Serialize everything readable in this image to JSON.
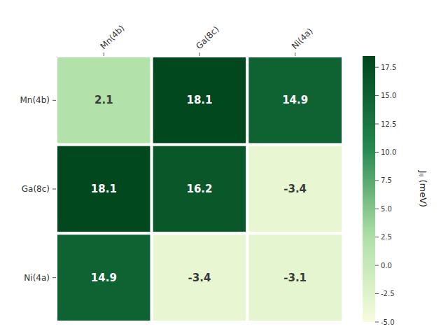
{
  "chart_data": {
    "type": "heatmap",
    "x_categories": [
      "Mn(4b)",
      "Ga(8c)",
      "Ni(4a)"
    ],
    "y_categories": [
      "Mn(4b)",
      "Ga(8c)",
      "Ni(4a)"
    ],
    "values": [
      [
        2.1,
        18.1,
        14.9
      ],
      [
        18.1,
        16.2,
        -3.4
      ],
      [
        14.9,
        -3.4,
        -3.1
      ]
    ],
    "data_labels": true,
    "colorbar_label": "Jᵢⱼ (meV)",
    "colorbar_range": [
      -5.0,
      18.5
    ],
    "colorbar_ticks": [
      {
        "value": -5.0,
        "label": "-5.0"
      },
      -2.5,
      {
        "value": 0.0,
        "label": "0.0"
      },
      2.5,
      {
        "value": 5.0,
        "label": "5.0"
      },
      7.5,
      {
        "value": 10.0,
        "label": "10.0"
      },
      12.5,
      {
        "value": 15.0,
        "label": "15.0"
      },
      17.5
    ]
  }
}
